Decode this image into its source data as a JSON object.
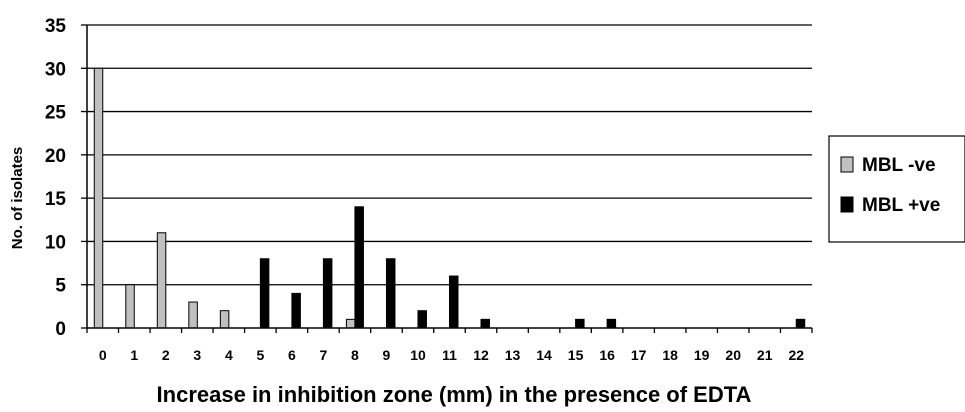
{
  "chart_data": {
    "type": "bar",
    "categories": [
      "0",
      "1",
      "2",
      "3",
      "4",
      "5",
      "6",
      "7",
      "8",
      "9",
      "10",
      "11",
      "12",
      "13",
      "14",
      "15",
      "16",
      "17",
      "18",
      "19",
      "20",
      "21",
      "22"
    ],
    "series": [
      {
        "name": "MBL -ve",
        "color": "#c0c0c0",
        "values": [
          30,
          5,
          11,
          3,
          2,
          0,
          0,
          0,
          1,
          0,
          0,
          0,
          0,
          0,
          0,
          0,
          0,
          0,
          0,
          0,
          0,
          0,
          0
        ]
      },
      {
        "name": "MBL +ve",
        "color": "#000000",
        "values": [
          0,
          0,
          0,
          0,
          0,
          8,
          4,
          8,
          14,
          8,
          2,
          6,
          1,
          0,
          0,
          1,
          1,
          0,
          0,
          0,
          0,
          0,
          1
        ]
      }
    ],
    "xlabel": "Increase in inhibition zone (mm) in the presence of EDTA",
    "ylabel": "No. of isolates",
    "ylim": [
      0,
      35
    ],
    "yticks": [
      0,
      5,
      10,
      15,
      20,
      25,
      30,
      35
    ],
    "grid": true,
    "legend_position": "right"
  }
}
